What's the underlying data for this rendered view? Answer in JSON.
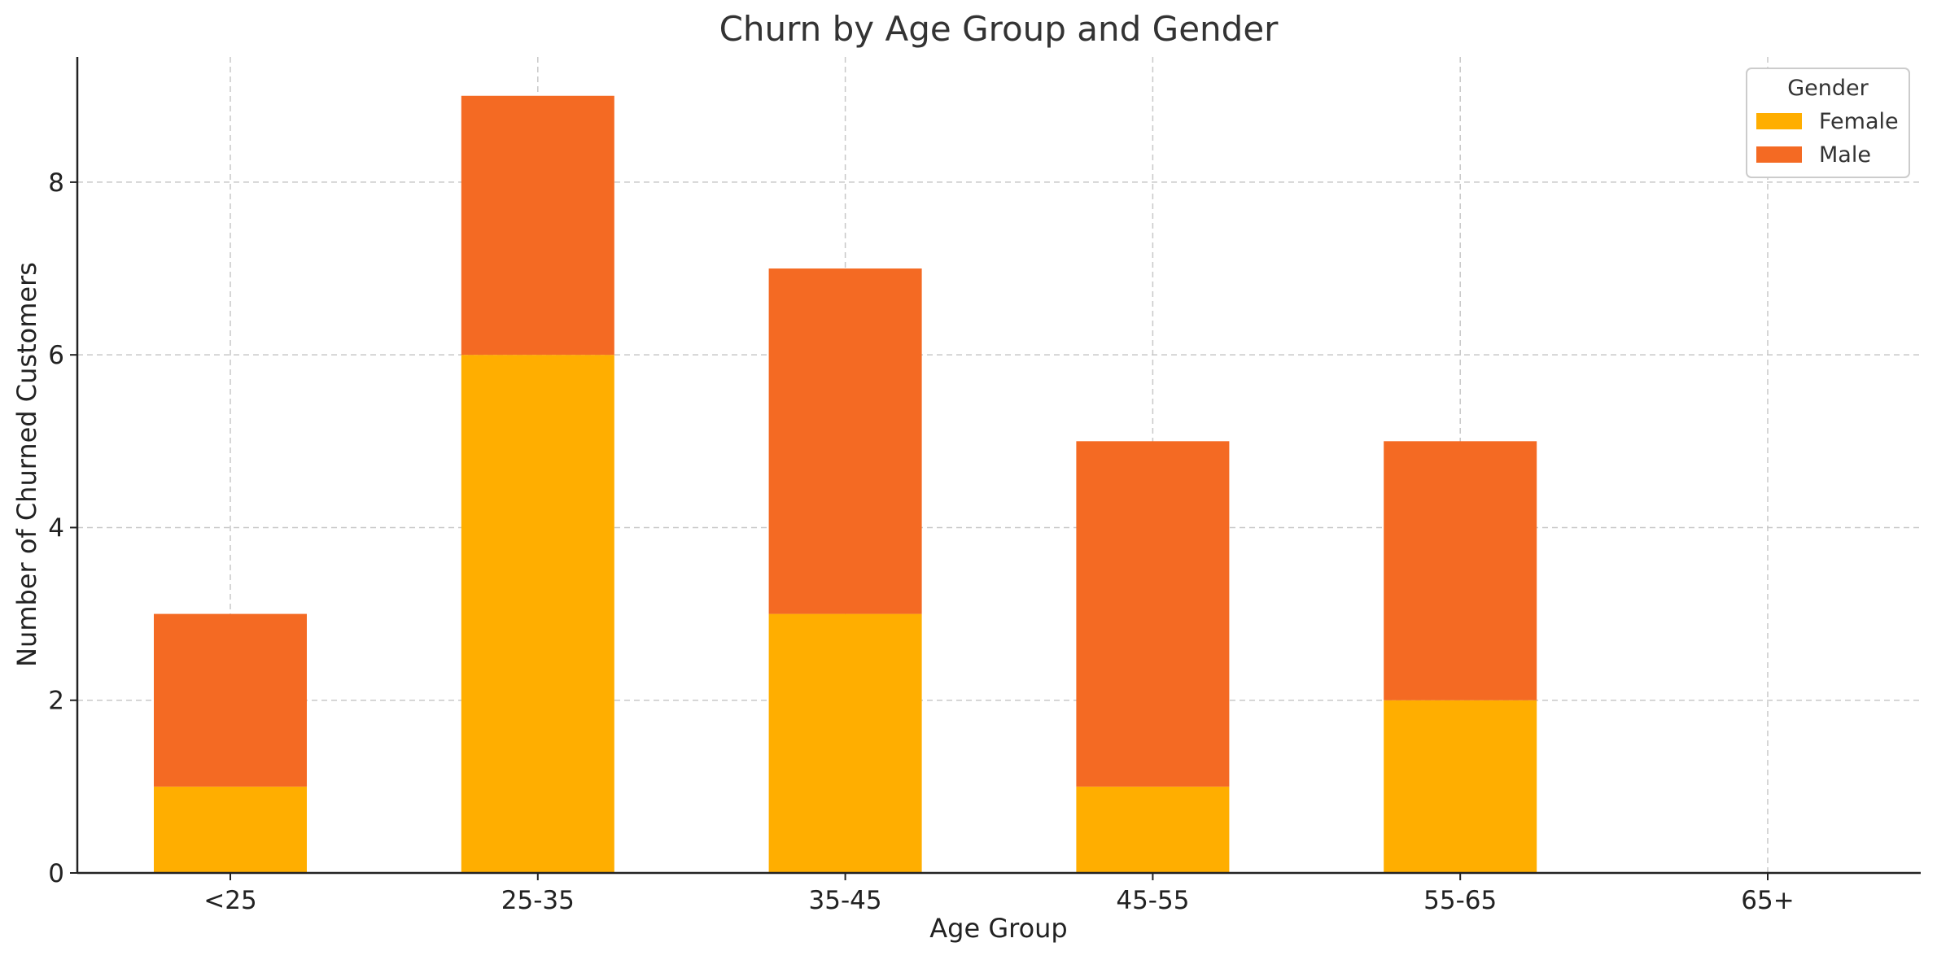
{
  "chart_data": {
    "type": "bar",
    "stacked": true,
    "title": "Churn by Age Group and Gender",
    "xlabel": "Age Group",
    "ylabel": "Number of Churned Customers",
    "categories": [
      "<25",
      "25-35",
      "35-45",
      "45-55",
      "55-65",
      "65+"
    ],
    "series": [
      {
        "name": "Female",
        "values": [
          1,
          6,
          3,
          1,
          2,
          0
        ],
        "color": "#FFAE00"
      },
      {
        "name": "Male",
        "values": [
          2,
          3,
          4,
          4,
          3,
          0
        ],
        "color": "#F46A23"
      }
    ],
    "ylim": [
      0,
      9.45
    ],
    "yticks": [
      0,
      2,
      4,
      6,
      8
    ],
    "grid": true,
    "legend": {
      "title": "Gender",
      "position": "top-right"
    }
  }
}
